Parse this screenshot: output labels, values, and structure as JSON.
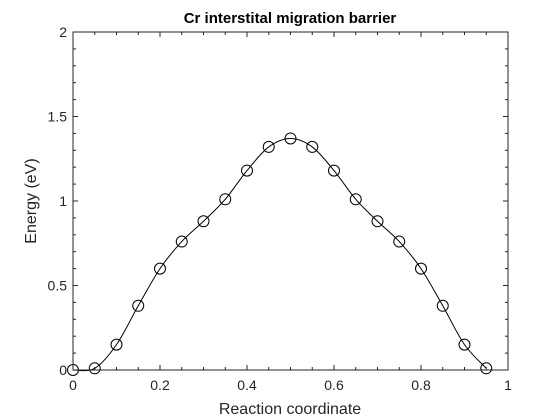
{
  "chart_data": {
    "type": "line",
    "title": "Cr interstital migration barrier",
    "xlabel": "Reaction coordinate",
    "ylabel": "Energy (eV)",
    "xlim": [
      0,
      1
    ],
    "ylim": [
      0,
      2
    ],
    "xticks": [
      "0",
      "0.2",
      "0.4",
      "0.6",
      "0.8",
      "1"
    ],
    "xtick_values": [
      0,
      0.2,
      0.4,
      0.6,
      0.8,
      1
    ],
    "yticks": [
      "0",
      "0.5",
      "1",
      "1.5",
      "2"
    ],
    "ytick_values": [
      0,
      0.5,
      1,
      1.5,
      2
    ],
    "grid": false,
    "marker": "open-circle",
    "line_color": "#000000",
    "series": [
      {
        "x": [
          0,
          0.05,
          0.1,
          0.15,
          0.2,
          0.25,
          0.3,
          0.35,
          0.4,
          0.45,
          0.5,
          0.55,
          0.6,
          0.65,
          0.7,
          0.75,
          0.8,
          0.85,
          0.9,
          0.95
        ],
        "y": [
          0,
          0.01,
          0.15,
          0.38,
          0.6,
          0.76,
          0.88,
          1.01,
          1.18,
          1.32,
          1.37,
          1.32,
          1.18,
          1.01,
          0.88,
          0.76,
          0.6,
          0.38,
          0.15,
          0.01
        ]
      }
    ]
  }
}
